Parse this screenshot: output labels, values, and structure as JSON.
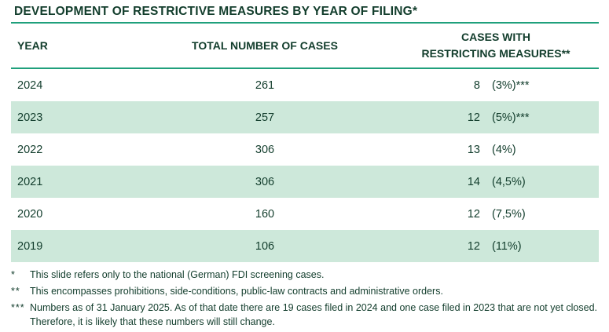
{
  "table": {
    "title": "DEVELOPMENT OF RESTRICTIVE MEASURES BY YEAR OF FILING*",
    "columns": {
      "year": "YEAR",
      "total": "TOTAL NUMBER OF CASES",
      "measures_line1": "CASES WITH",
      "measures_line2": "RESTRICTING MEASURES**",
      "measures_full": "CASES WITH RESTRICTING MEASURES**"
    },
    "rows": [
      {
        "year": "2024",
        "total": "261",
        "measures": "8",
        "percent": "(3%)***"
      },
      {
        "year": "2023",
        "total": "257",
        "measures": "12",
        "percent": "(5%)***"
      },
      {
        "year": "2022",
        "total": "306",
        "measures": "13",
        "percent": "(4%)"
      },
      {
        "year": "2021",
        "total": "306",
        "measures": "14",
        "percent": "(4,5%)"
      },
      {
        "year": "2020",
        "total": "160",
        "measures": "12",
        "percent": "(7,5%)"
      },
      {
        "year": "2019",
        "total": "106",
        "measures": "12",
        "percent": "(11%)"
      }
    ]
  },
  "footnotes": [
    {
      "marker": "*",
      "text": "This slide refers only to the national (German) FDI screening cases."
    },
    {
      "marker": "**",
      "text": "This encompasses prohibitions, side-conditions, public-law contracts and administrative orders."
    },
    {
      "marker": "***",
      "text": "Numbers as of 31 January 2025. As of that date there are 19 cases filed in 2024 and one case filed in 2023 that are not yet closed. Therefore, it is likely that these numbers will still change."
    }
  ],
  "colors": {
    "text": "#123d2c",
    "accent_line": "#1fa07c",
    "row_highlight": "#cde8da",
    "background": "#ffffff"
  }
}
